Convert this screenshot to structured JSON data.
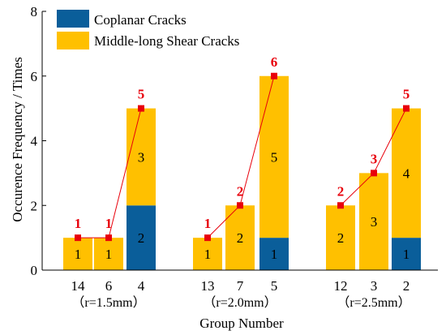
{
  "chart_data": {
    "type": "bar",
    "stacked": true,
    "xlabel": "Group Number",
    "ylabel": "Occurence Frequency / Times",
    "ylim": [
      0,
      8
    ],
    "yticks": [
      0,
      2,
      4,
      6,
      8
    ],
    "groups": [
      {
        "label": "（r=1.5mm）",
        "categories": [
          "14",
          "6",
          "4"
        ]
      },
      {
        "label": "（r=2.0mm）",
        "categories": [
          "13",
          "7",
          "5"
        ]
      },
      {
        "label": "（r=2.5mm）",
        "categories": [
          "12",
          "3",
          "2"
        ]
      }
    ],
    "categories": [
      "14",
      "6",
      "4",
      "13",
      "7",
      "5",
      "12",
      "3",
      "2"
    ],
    "series": [
      {
        "name": "Coplanar Cracks",
        "color": "#0a5e9a",
        "values": [
          0,
          0,
          2,
          0,
          0,
          1,
          0,
          0,
          1
        ]
      },
      {
        "name": "Middle-long Shear Cracks",
        "color": "#ffc000",
        "values": [
          1,
          1,
          3,
          1,
          2,
          5,
          2,
          3,
          4
        ]
      }
    ],
    "totals": [
      1,
      1,
      5,
      1,
      2,
      6,
      2,
      3,
      5
    ],
    "total_line_color": "#e8000b",
    "legend_position": "top-left",
    "grid": false
  }
}
